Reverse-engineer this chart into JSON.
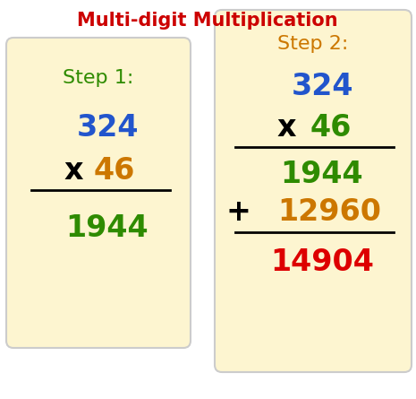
{
  "title": "Multi-digit Multiplication",
  "title_color": "#cc0000",
  "title_fontsize": 15,
  "background_color": "#ffffff",
  "box_color": "#fdf5d0",
  "box_edge_color": "#cccccc",
  "step1": {
    "label": "Step 1:",
    "label_color": "#2e8b00",
    "num1": "324",
    "num1_color": "#2255cc",
    "mult_symbol": "x",
    "mult_color": "#000000",
    "num2": "46",
    "num2_color": "#cc7700",
    "line_color": "#000000",
    "result": "1944",
    "result_color": "#2e8b00"
  },
  "step2": {
    "label": "Step 2:",
    "label_color": "#cc7700",
    "num1": "324",
    "num1_color": "#2255cc",
    "mult_symbol": "x",
    "mult_color": "#000000",
    "num2": "46",
    "num2_color": "#2e8b00",
    "line_color": "#000000",
    "partial1": "1944",
    "partial1_color": "#2e8b00",
    "plus_symbol": "+",
    "plus_color": "#000000",
    "partial2": "12960",
    "partial2_color": "#cc7700",
    "line2_color": "#000000",
    "result": "14904",
    "result_color": "#dd0000"
  },
  "num_fontsize": 24,
  "step_fontsize": 16
}
